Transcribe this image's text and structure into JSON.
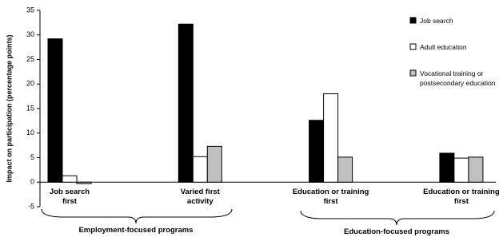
{
  "chart_data": {
    "type": "bar",
    "y_label": "Impact on participation (percentage points)",
    "categories": [
      "Job search first",
      "Varied first activity",
      "Education or training first",
      "Education or training first"
    ],
    "group_labels": [
      "Employment-focused programs",
      "Education-focused programs"
    ],
    "series": [
      {
        "name": "Job search",
        "color": "#000000",
        "values": [
          29.2,
          32.2,
          12.6,
          5.9
        ]
      },
      {
        "name": "Adult education",
        "color": "#ffffff",
        "values": [
          1.3,
          5.2,
          18.0,
          4.9
        ]
      },
      {
        "name": "Vocational training or postsecondary education",
        "color": "#c0c0c0",
        "values": [
          -0.3,
          7.3,
          5.1,
          5.1
        ]
      }
    ],
    "ylim": [
      -5,
      35
    ],
    "yticks": [
      -5,
      0,
      5,
      10,
      15,
      20,
      25,
      30,
      35
    ],
    "legend": "top-right"
  }
}
